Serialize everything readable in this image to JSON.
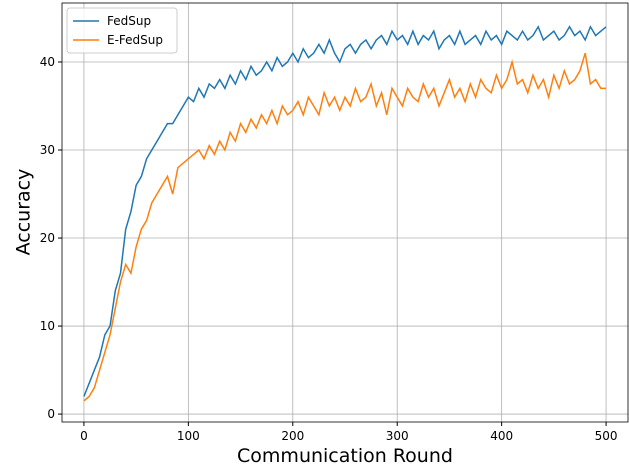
{
  "chart_data": {
    "type": "line",
    "x_label": "Communication Round",
    "y_label": "Accuracy",
    "x": [
      0,
      5,
      10,
      15,
      20,
      25,
      30,
      35,
      40,
      45,
      50,
      55,
      60,
      65,
      70,
      75,
      80,
      85,
      90,
      95,
      100,
      105,
      110,
      115,
      120,
      125,
      130,
      135,
      140,
      145,
      150,
      155,
      160,
      165,
      170,
      175,
      180,
      185,
      190,
      195,
      200,
      205,
      210,
      215,
      220,
      225,
      230,
      235,
      240,
      245,
      250,
      255,
      260,
      265,
      270,
      275,
      280,
      285,
      290,
      295,
      300,
      305,
      310,
      315,
      320,
      325,
      330,
      335,
      340,
      345,
      350,
      355,
      360,
      365,
      370,
      375,
      380,
      385,
      390,
      395,
      400,
      405,
      410,
      415,
      420,
      425,
      430,
      435,
      440,
      445,
      450,
      455,
      460,
      465,
      470,
      475,
      480,
      485,
      490,
      495,
      500
    ],
    "series": [
      {
        "name": "FedSup",
        "color": "#1f77b4",
        "values": [
          2,
          3.5,
          5,
          6.5,
          9,
          10,
          14,
          16,
          21,
          23,
          26,
          27,
          29,
          30,
          31,
          32,
          33,
          33,
          34,
          35,
          36,
          35.5,
          37,
          36,
          37.5,
          37,
          38,
          37,
          38.5,
          37.5,
          39,
          38,
          39.5,
          38.5,
          39,
          40,
          39,
          40.5,
          39.5,
          40,
          41,
          40,
          41.5,
          40.5,
          41,
          42,
          41,
          42.5,
          41,
          40,
          41.5,
          42,
          41,
          42,
          42.5,
          41.5,
          42.5,
          43,
          42,
          43.5,
          42.5,
          43,
          42,
          43.5,
          42,
          43,
          42.5,
          43.5,
          41.5,
          42.5,
          43,
          42,
          43.5,
          42,
          42.5,
          43,
          42,
          43.5,
          42.5,
          43,
          42,
          43.5,
          43,
          42.5,
          43.5,
          42.5,
          43,
          44,
          42.5,
          43,
          43.5,
          42.5,
          43,
          44,
          43,
          43.5,
          42.5,
          44,
          43,
          43.5,
          44
        ]
      },
      {
        "name": "E-FedSup",
        "color": "#ff7f0e",
        "values": [
          1.5,
          2,
          3,
          5,
          7,
          9,
          12,
          15,
          17,
          16,
          19,
          21,
          22,
          24,
          25,
          26,
          27,
          25,
          28,
          28.5,
          29,
          29.5,
          30,
          29,
          30.5,
          29.5,
          31,
          30,
          32,
          31,
          33,
          32,
          33.5,
          32.5,
          34,
          33,
          34.5,
          33,
          35,
          34,
          34.5,
          35.5,
          34,
          36,
          35,
          34,
          36.5,
          35,
          36,
          34.5,
          36,
          35,
          37,
          35.5,
          36,
          37.5,
          35,
          36.5,
          34,
          37,
          36,
          35,
          37,
          36,
          35.5,
          37.5,
          36,
          37,
          35,
          36.5,
          38,
          36,
          37,
          35.5,
          37.5,
          36,
          38,
          37,
          36.5,
          38.5,
          37,
          38,
          40,
          37.5,
          38,
          36.5,
          38.5,
          37,
          38,
          36,
          38.5,
          37,
          39,
          37.5,
          38,
          39,
          41,
          37.5,
          38,
          37,
          37
        ]
      }
    ],
    "xlim": [
      -21,
      521
    ],
    "ylim": [
      -0.9,
      46.7
    ],
    "xticks": [
      0,
      100,
      200,
      300,
      400,
      500
    ],
    "yticks": [
      0,
      10,
      20,
      30,
      40
    ],
    "grid": true,
    "legend": "upper left"
  }
}
